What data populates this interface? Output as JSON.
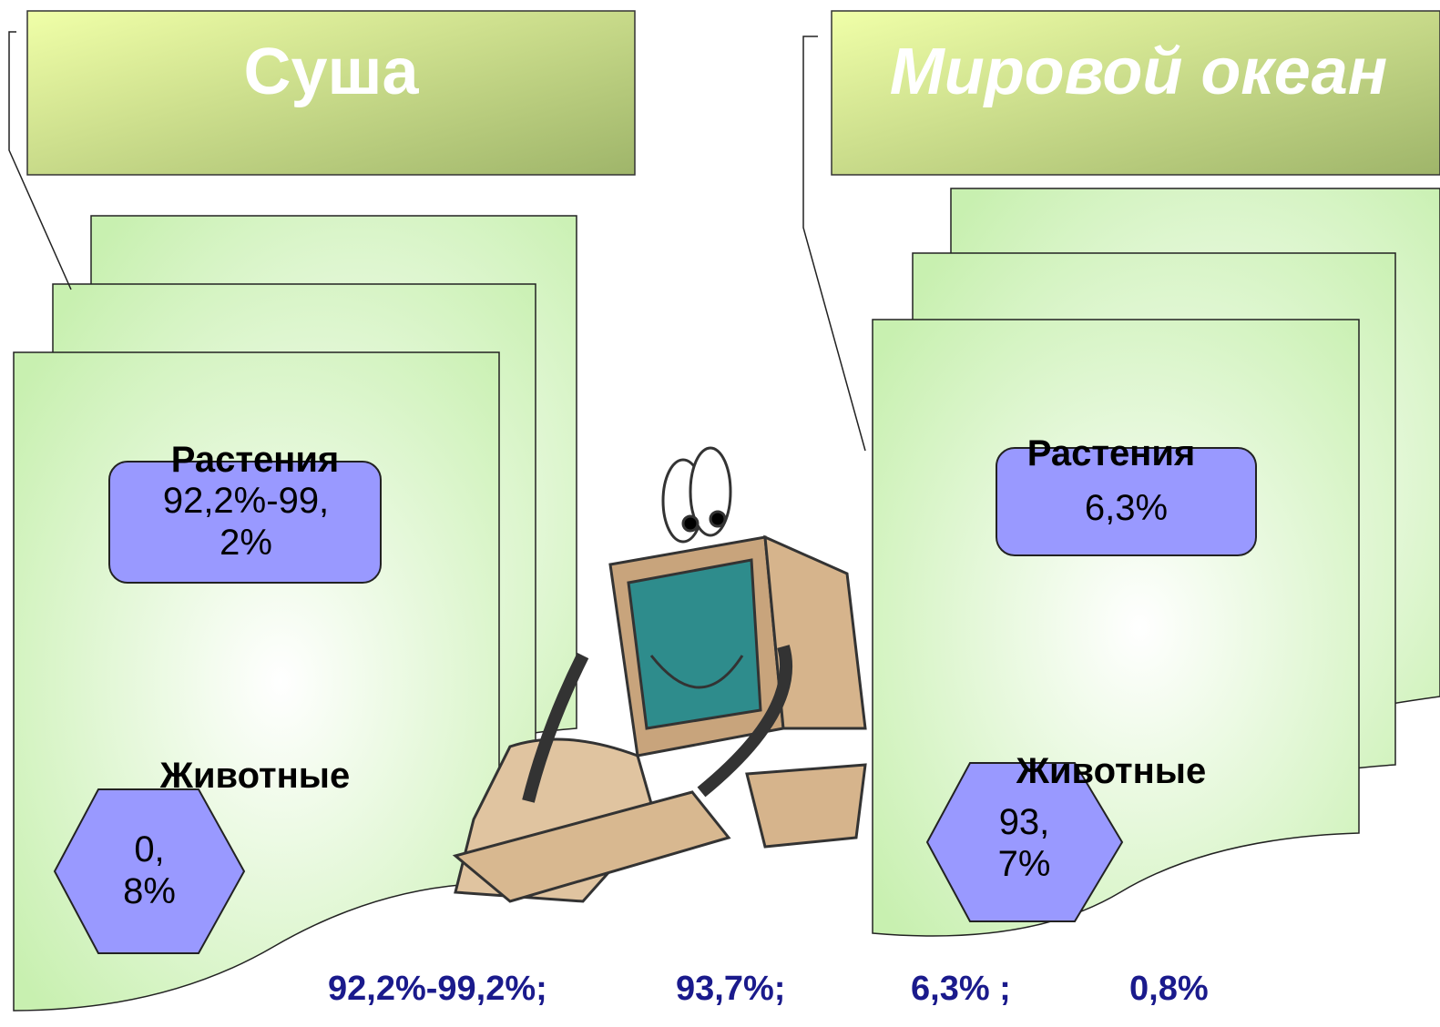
{
  "left": {
    "title": "Суша",
    "plants": "Растения",
    "plants_share": "92,2%-99,2%",
    "animals": "Животные",
    "animals_share": "0,8%"
  },
  "right": {
    "title": "Мировой океан",
    "plants": "Растения",
    "plants_share": "6,3%",
    "animals": "Животные",
    "animals_share": "93,7%"
  },
  "answers": [
    "92,2%-99,2%;",
    "93,7%;",
    "6,3% ;",
    "0,8%"
  ]
}
